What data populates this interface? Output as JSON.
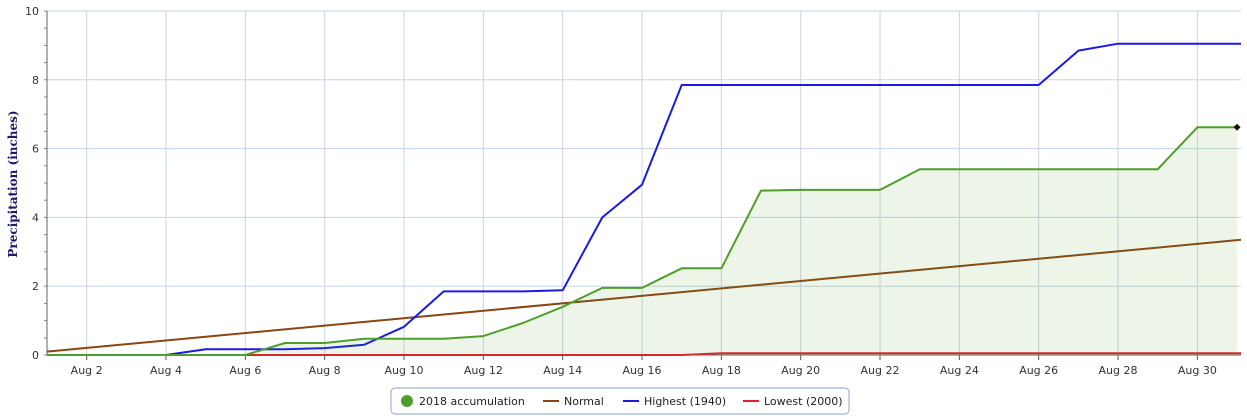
{
  "chart_data": {
    "type": "line",
    "ylabel": "Precipitation (inches)",
    "xlabel": "",
    "ylim": [
      0,
      10
    ],
    "yticks": [
      0,
      2,
      4,
      6,
      8,
      10
    ],
    "xlim": [
      1,
      31.1
    ],
    "xticks": [
      {
        "day": 2,
        "label": "Aug 2"
      },
      {
        "day": 4,
        "label": "Aug 4"
      },
      {
        "day": 6,
        "label": "Aug 6"
      },
      {
        "day": 8,
        "label": "Aug 8"
      },
      {
        "day": 10,
        "label": "Aug 10"
      },
      {
        "day": 12,
        "label": "Aug 12"
      },
      {
        "day": 14,
        "label": "Aug 14"
      },
      {
        "day": 16,
        "label": "Aug 16"
      },
      {
        "day": 18,
        "label": "Aug 18"
      },
      {
        "day": 20,
        "label": "Aug 20"
      },
      {
        "day": 22,
        "label": "Aug 22"
      },
      {
        "day": 24,
        "label": "Aug 24"
      },
      {
        "day": 26,
        "label": "Aug 26"
      },
      {
        "day": 28,
        "label": "Aug 28"
      },
      {
        "day": 30,
        "label": "Aug 30"
      }
    ],
    "grid": true,
    "legend_position": "bottom-center",
    "series": [
      {
        "name": "Normal",
        "color": "#8b4513",
        "fill": false,
        "x": [
          1,
          31.1
        ],
        "y": [
          0.1,
          3.35
        ]
      },
      {
        "name": "Highest (1940)",
        "color": "#1a1ae6",
        "fill": false,
        "x": [
          1,
          2,
          3,
          4,
          5,
          6,
          7,
          8,
          9,
          10,
          11,
          12,
          13,
          14,
          15,
          16,
          17,
          18,
          19,
          20,
          21,
          22,
          23,
          24,
          25,
          26,
          27,
          28,
          29,
          30,
          31,
          31.1
        ],
        "y": [
          0,
          0,
          0,
          0,
          0.17,
          0.17,
          0.17,
          0.2,
          0.3,
          0.82,
          1.85,
          1.85,
          1.85,
          1.88,
          4.0,
          4.95,
          7.85,
          7.85,
          7.85,
          7.85,
          7.85,
          7.85,
          7.85,
          7.85,
          7.85,
          7.85,
          8.85,
          9.05,
          9.05,
          9.05,
          9.05,
          9.05
        ]
      },
      {
        "name": "Lowest (2000)",
        "color": "#e0202a",
        "fill": false,
        "x": [
          1,
          17,
          18,
          31.1
        ],
        "y": [
          0,
          0,
          0.05,
          0.05
        ]
      },
      {
        "name": "2018 accumulation",
        "color": "#4f9e2a",
        "fill": true,
        "x": [
          1,
          2,
          3,
          4,
          5,
          6,
          7,
          8,
          9,
          10,
          11,
          12,
          13,
          14,
          15,
          16,
          17,
          18,
          19,
          20,
          21,
          22,
          23,
          24,
          25,
          26,
          27,
          28,
          29,
          30,
          31
        ],
        "y": [
          0,
          0,
          0,
          0,
          0,
          0,
          0.35,
          0.35,
          0.47,
          0.47,
          0.47,
          0.55,
          0.93,
          1.4,
          1.95,
          1.95,
          2.52,
          2.52,
          4.78,
          4.8,
          4.8,
          4.8,
          5.4,
          5.4,
          5.4,
          5.4,
          5.4,
          5.4,
          5.4,
          6.62,
          6.62
        ]
      }
    ]
  }
}
